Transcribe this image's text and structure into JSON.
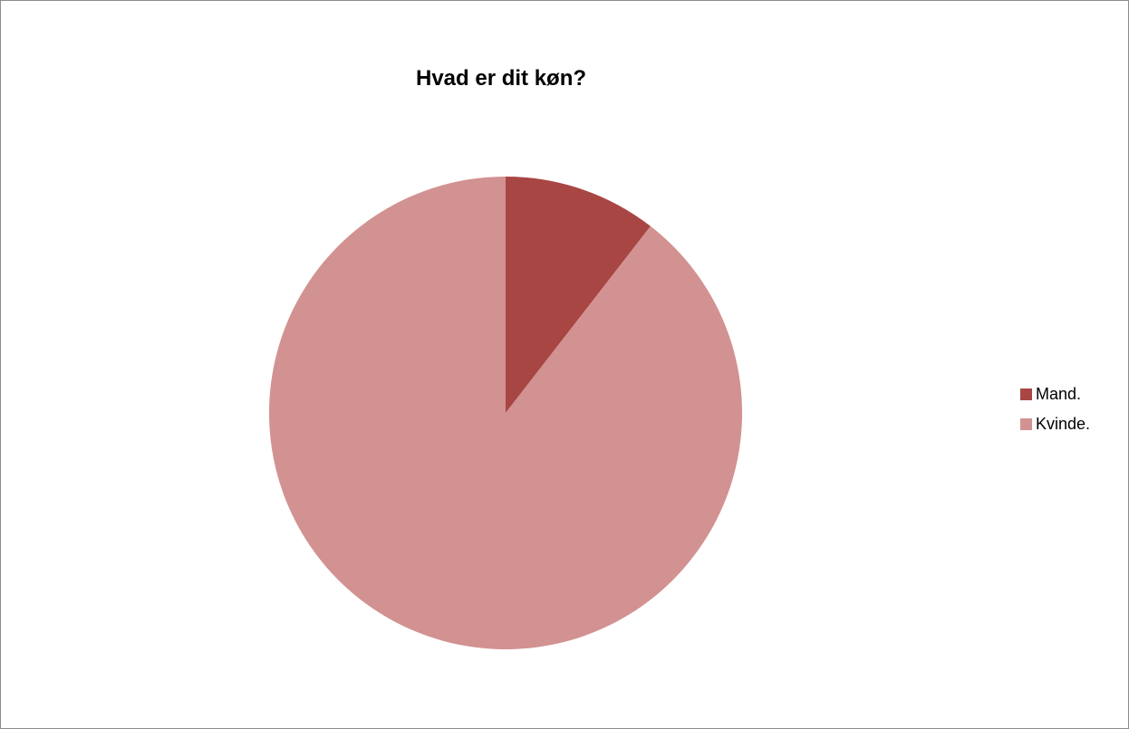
{
  "chart_data": {
    "type": "pie",
    "title": "Hvad er dit køn?",
    "categories": [
      "Mand.",
      "Kvinde."
    ],
    "values": [
      10.5,
      89.5
    ],
    "colors": [
      "#a84644",
      "#d29291"
    ],
    "legend_position": "right",
    "start_angle_deg": 0,
    "direction": "clockwise"
  }
}
